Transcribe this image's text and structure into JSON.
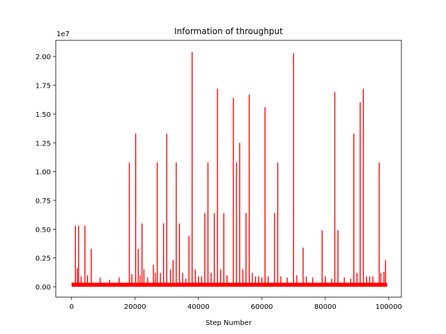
{
  "chart_data": {
    "type": "line",
    "title": "Information of throughput",
    "xlabel": "Step Number",
    "ylabel": "",
    "y_offset_text": "1e7",
    "xlim": [
      -5000,
      104000
    ],
    "ylim": [
      -900000,
      21400000
    ],
    "x_ticks": [
      0,
      20000,
      40000,
      60000,
      80000,
      100000
    ],
    "x_tick_labels": [
      "0",
      "20000",
      "40000",
      "60000",
      "80000",
      "100000"
    ],
    "y_ticks": [
      0,
      2500000,
      5000000,
      7500000,
      10000000,
      12500000,
      15000000,
      17500000,
      20000000
    ],
    "y_tick_labels": [
      "0.00",
      "0.25",
      "0.50",
      "0.75",
      "1.00",
      "1.25",
      "1.50",
      "1.75",
      "2.00"
    ],
    "grid": false,
    "color": "#ff0000",
    "series": [
      {
        "name": "",
        "x_range": [
          0,
          99500
        ],
        "baseline": [
          0,
          350000
        ],
        "spikes": [
          [
            1200,
            5300000
          ],
          [
            1800,
            1600000
          ],
          [
            2200,
            5300000
          ],
          [
            3000,
            900000
          ],
          [
            4200,
            5300000
          ],
          [
            5000,
            1000000
          ],
          [
            6200,
            3300000
          ],
          [
            9000,
            800000
          ],
          [
            12000,
            600000
          ],
          [
            15000,
            800000
          ],
          [
            18200,
            10800000
          ],
          [
            19000,
            1100000
          ],
          [
            20200,
            13300000
          ],
          [
            21000,
            3300000
          ],
          [
            21600,
            1000000
          ],
          [
            22200,
            5500000
          ],
          [
            22800,
            1500000
          ],
          [
            24000,
            800000
          ],
          [
            25800,
            1900000
          ],
          [
            26400,
            1200000
          ],
          [
            27000,
            10800000
          ],
          [
            28000,
            1200000
          ],
          [
            29000,
            5500000
          ],
          [
            30000,
            13300000
          ],
          [
            31200,
            1500000
          ],
          [
            32000,
            2300000
          ],
          [
            33000,
            10800000
          ],
          [
            34000,
            5500000
          ],
          [
            35000,
            1200000
          ],
          [
            36000,
            700000
          ],
          [
            37000,
            4400000
          ],
          [
            38000,
            20400000
          ],
          [
            39000,
            1500000
          ],
          [
            40000,
            900000
          ],
          [
            41000,
            900000
          ],
          [
            42000,
            6400000
          ],
          [
            43000,
            10800000
          ],
          [
            44000,
            1200000
          ],
          [
            45000,
            6400000
          ],
          [
            46000,
            17200000
          ],
          [
            47000,
            1500000
          ],
          [
            48000,
            6400000
          ],
          [
            49000,
            1000000
          ],
          [
            51000,
            16400000
          ],
          [
            52000,
            10800000
          ],
          [
            53000,
            12500000
          ],
          [
            54000,
            1500000
          ],
          [
            55000,
            6400000
          ],
          [
            56000,
            16700000
          ],
          [
            57000,
            1200000
          ],
          [
            58000,
            900000
          ],
          [
            59000,
            900000
          ],
          [
            60000,
            800000
          ],
          [
            61000,
            15600000
          ],
          [
            62000,
            900000
          ],
          [
            64000,
            6400000
          ],
          [
            65000,
            10800000
          ],
          [
            66000,
            900000
          ],
          [
            68000,
            800000
          ],
          [
            70000,
            20300000
          ],
          [
            71000,
            1000000
          ],
          [
            73000,
            3400000
          ],
          [
            74000,
            900000
          ],
          [
            76000,
            800000
          ],
          [
            79000,
            4900000
          ],
          [
            80000,
            900000
          ],
          [
            82000,
            700000
          ],
          [
            83000,
            16900000
          ],
          [
            84000,
            4900000
          ],
          [
            86000,
            800000
          ],
          [
            88000,
            700000
          ],
          [
            89000,
            13300000
          ],
          [
            90000,
            1200000
          ],
          [
            91000,
            16000000
          ],
          [
            92000,
            17200000
          ],
          [
            93000,
            900000
          ],
          [
            94000,
            900000
          ],
          [
            95000,
            900000
          ],
          [
            97000,
            10800000
          ],
          [
            97500,
            1200000
          ],
          [
            98500,
            1300000
          ],
          [
            99000,
            2300000
          ]
        ]
      }
    ]
  }
}
